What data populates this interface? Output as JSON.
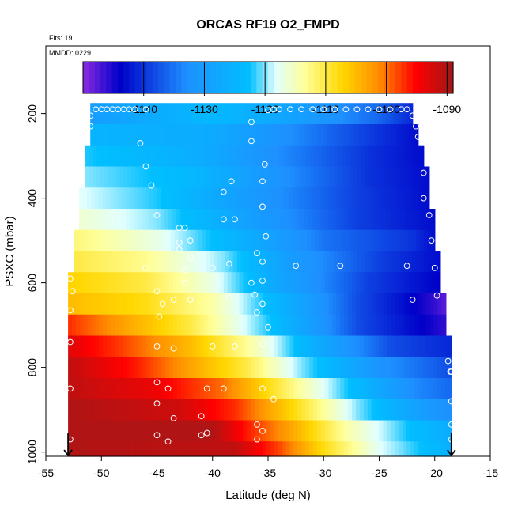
{
  "chart_data": {
    "type": "heatmap",
    "title": "ORCAS RF19 O2_FMPD",
    "flights_label": "Flts: 19",
    "date_label": "MMDD: 0229",
    "xlabel": "Latitude (deg N)",
    "ylabel": "PSXC (mbar)",
    "xlim": [
      -55,
      -15
    ],
    "ylim": [
      1010,
      40
    ],
    "x_ticks": [
      -55,
      -50,
      -45,
      -40,
      -35,
      -30,
      -25,
      -20,
      -15
    ],
    "y_ticks": [
      200,
      400,
      600,
      800,
      1000
    ],
    "colorbar": {
      "range": [
        -1150,
        -1089
      ],
      "ticks": [
        -1140,
        -1130,
        -1120,
        -1110,
        -1100,
        -1090
      ],
      "colors": [
        "#8a2be2",
        "#0000c8",
        "#1e90ff",
        "#00bfff",
        "#e0ffff",
        "#ffff99",
        "#ffd700",
        "#ff8c00",
        "#ff0000",
        "#a01818"
      ],
      "stops": [
        0,
        0.1,
        0.28,
        0.45,
        0.52,
        0.6,
        0.7,
        0.8,
        0.9,
        1
      ]
    },
    "profile_rows": [
      {
        "p_top": 175,
        "p_bot": 225,
        "lat_start": -51,
        "lat_end": -22,
        "nodes": [
          [
            -51,
            -1130
          ],
          [
            -40,
            -1124
          ],
          [
            -35,
            -1127
          ],
          [
            -25,
            -1136
          ],
          [
            -22,
            -1141
          ]
        ]
      },
      {
        "p_top": 225,
        "p_bot": 275,
        "lat_start": -51,
        "lat_end": -21.5,
        "nodes": [
          [
            -51,
            -1125
          ],
          [
            -40,
            -1127
          ],
          [
            -33,
            -1133
          ],
          [
            -25,
            -1140
          ],
          [
            -21.5,
            -1143
          ]
        ]
      },
      {
        "p_top": 275,
        "p_bot": 325,
        "lat_start": -51.5,
        "lat_end": -21,
        "nodes": [
          [
            -51.5,
            -1122
          ],
          [
            -42,
            -1126
          ],
          [
            -34,
            -1133
          ],
          [
            -26,
            -1140
          ],
          [
            -21,
            -1143
          ]
        ]
      },
      {
        "p_top": 325,
        "p_bot": 375,
        "lat_start": -51.5,
        "lat_end": -20.5,
        "nodes": [
          [
            -51.5,
            -1120
          ],
          [
            -42,
            -1124
          ],
          [
            -34,
            -1132
          ],
          [
            -26,
            -1140
          ],
          [
            -20.5,
            -1143
          ]
        ]
      },
      {
        "p_top": 375,
        "p_bot": 425,
        "lat_start": -52,
        "lat_end": -20.5,
        "nodes": [
          [
            -52,
            -1118
          ],
          [
            -45,
            -1122
          ],
          [
            -36,
            -1131
          ],
          [
            -27,
            -1139
          ],
          [
            -20.5,
            -1143
          ]
        ]
      },
      {
        "p_top": 425,
        "p_bot": 475,
        "lat_start": -52,
        "lat_end": -20,
        "nodes": [
          [
            -52,
            -1116
          ],
          [
            -45,
            -1120
          ],
          [
            -36,
            -1130
          ],
          [
            -27,
            -1139
          ],
          [
            -20,
            -1143
          ]
        ]
      },
      {
        "p_top": 475,
        "p_bot": 525,
        "lat_start": -52.5,
        "lat_end": -20,
        "nodes": [
          [
            -52.5,
            -1112
          ],
          [
            -45,
            -1117
          ],
          [
            -38,
            -1125
          ],
          [
            -30,
            -1135
          ],
          [
            -22,
            -1140
          ],
          [
            -20,
            -1143
          ]
        ]
      },
      {
        "p_top": 525,
        "p_bot": 575,
        "lat_start": -52.5,
        "lat_end": -19.5,
        "nodes": [
          [
            -52.5,
            -1110
          ],
          [
            -46,
            -1113
          ],
          [
            -39,
            -1120
          ],
          [
            -33,
            -1130
          ],
          [
            -25,
            -1139
          ],
          [
            -19.5,
            -1143
          ]
        ]
      },
      {
        "p_top": 575,
        "p_bot": 625,
        "lat_start": -53,
        "lat_end": -19.5,
        "nodes": [
          [
            -53,
            -1107
          ],
          [
            -46,
            -1110
          ],
          [
            -40,
            -1117
          ],
          [
            -34,
            -1128
          ],
          [
            -26,
            -1139
          ],
          [
            -19.5,
            -1144
          ]
        ]
      },
      {
        "p_top": 625,
        "p_bot": 675,
        "lat_start": -53,
        "lat_end": -19,
        "nodes": [
          [
            -53,
            -1105
          ],
          [
            -46,
            -1108
          ],
          [
            -40,
            -1114
          ],
          [
            -34,
            -1125
          ],
          [
            -27,
            -1138
          ],
          [
            -20,
            -1146
          ],
          [
            -19,
            -1148
          ]
        ]
      },
      {
        "p_top": 675,
        "p_bot": 725,
        "lat_start": -53,
        "lat_end": -19,
        "nodes": [
          [
            -53,
            -1097
          ],
          [
            -48,
            -1103
          ],
          [
            -42,
            -1110
          ],
          [
            -35,
            -1122
          ],
          [
            -27,
            -1138
          ],
          [
            -19,
            -1146
          ]
        ]
      },
      {
        "p_top": 725,
        "p_bot": 775,
        "lat_start": -53,
        "lat_end": -18.5,
        "nodes": [
          [
            -53,
            -1093
          ],
          [
            -48,
            -1098
          ],
          [
            -42,
            -1105
          ],
          [
            -36,
            -1115
          ],
          [
            -30,
            -1128
          ],
          [
            -24,
            -1138
          ],
          [
            -18.5,
            -1141
          ]
        ]
      },
      {
        "p_top": 775,
        "p_bot": 825,
        "lat_start": -53,
        "lat_end": -18.5,
        "nodes": [
          [
            -53,
            -1091
          ],
          [
            -47,
            -1096
          ],
          [
            -42,
            -1103
          ],
          [
            -37,
            -1110
          ],
          [
            -32,
            -1120
          ],
          [
            -25,
            -1132
          ],
          [
            -18.5,
            -1138
          ]
        ]
      },
      {
        "p_top": 825,
        "p_bot": 875,
        "lat_start": -53,
        "lat_end": -18.5,
        "nodes": [
          [
            -53,
            -1091
          ],
          [
            -45,
            -1094
          ],
          [
            -39,
            -1100
          ],
          [
            -34,
            -1110
          ],
          [
            -28,
            -1122
          ],
          [
            -22,
            -1133
          ],
          [
            -18.5,
            -1136
          ]
        ]
      },
      {
        "p_top": 875,
        "p_bot": 925,
        "lat_start": -53,
        "lat_end": -18.5,
        "nodes": [
          [
            -53,
            -1090
          ],
          [
            -43,
            -1092
          ],
          [
            -38,
            -1097
          ],
          [
            -33,
            -1107
          ],
          [
            -27,
            -1120
          ],
          [
            -21,
            -1130
          ],
          [
            -18.5,
            -1133
          ]
        ]
      },
      {
        "p_top": 925,
        "p_bot": 975,
        "lat_start": -53,
        "lat_end": -18.5,
        "nodes": [
          [
            -53,
            -1090
          ],
          [
            -40,
            -1090
          ],
          [
            -37,
            -1096
          ],
          [
            -33,
            -1103
          ],
          [
            -28,
            -1114
          ],
          [
            -22,
            -1123
          ],
          [
            -18.5,
            -1127
          ]
        ]
      },
      {
        "p_top": 975,
        "p_bot": 1012,
        "lat_start": -53,
        "lat_end": -18.5,
        "nodes": [
          [
            -53,
            -1090
          ],
          [
            -38,
            -1091
          ],
          [
            -34,
            -1098
          ],
          [
            -30,
            -1108
          ],
          [
            -25,
            -1118
          ],
          [
            -20,
            -1124
          ],
          [
            -18.5,
            -1126
          ]
        ]
      }
    ],
    "sample_points": [
      [
        -50.5,
        190
      ],
      [
        -50,
        190
      ],
      [
        -49.5,
        190
      ],
      [
        -49,
        190
      ],
      [
        -48.5,
        190
      ],
      [
        -48,
        190
      ],
      [
        -47.5,
        190
      ],
      [
        -47,
        190
      ],
      [
        -46,
        190
      ],
      [
        -35,
        192
      ],
      [
        -34.5,
        190
      ],
      [
        -34,
        190
      ],
      [
        -33,
        190
      ],
      [
        -32,
        190
      ],
      [
        -31,
        190
      ],
      [
        -30,
        190
      ],
      [
        -29,
        190
      ],
      [
        -28,
        190
      ],
      [
        -27,
        190
      ],
      [
        -26,
        190
      ],
      [
        -25,
        190
      ],
      [
        -24,
        190
      ],
      [
        -23,
        190
      ],
      [
        -22.5,
        190
      ],
      [
        -51,
        205
      ],
      [
        -51,
        230
      ],
      [
        -51.5,
        255
      ],
      [
        -51.7,
        315
      ],
      [
        -22,
        205
      ],
      [
        -21.7,
        230
      ],
      [
        -21.5,
        255
      ],
      [
        -46.5,
        270
      ],
      [
        -46,
        325
      ],
      [
        -45.5,
        370
      ],
      [
        -45,
        440
      ],
      [
        -36.5,
        220
      ],
      [
        -36.5,
        265
      ],
      [
        -35.3,
        320
      ],
      [
        -35.5,
        360
      ],
      [
        -39,
        385
      ],
      [
        -38.3,
        360
      ],
      [
        -38,
        450
      ],
      [
        -35.5,
        420
      ],
      [
        -39,
        450
      ],
      [
        -21,
        340
      ],
      [
        -21,
        400
      ],
      [
        -20.5,
        440
      ],
      [
        -20.3,
        500
      ],
      [
        -43,
        470
      ],
      [
        -42.5,
        470
      ],
      [
        -42,
        500
      ],
      [
        -43,
        505
      ],
      [
        -43,
        520
      ],
      [
        -42,
        540
      ],
      [
        -38.5,
        555
      ],
      [
        -35.5,
        550
      ],
      [
        -36,
        530
      ],
      [
        -35.2,
        490
      ],
      [
        -32.5,
        560
      ],
      [
        -28.5,
        560
      ],
      [
        -22.5,
        560
      ],
      [
        -35.5,
        595
      ],
      [
        -42.5,
        570
      ],
      [
        -42.5,
        600
      ],
      [
        -46,
        565
      ],
      [
        -40,
        565
      ],
      [
        -20,
        565
      ],
      [
        -19.8,
        630
      ],
      [
        -52.7,
        540
      ],
      [
        -52.8,
        590
      ],
      [
        -52.6,
        620
      ],
      [
        -52.8,
        665
      ],
      [
        -45,
        620
      ],
      [
        -44.5,
        650
      ],
      [
        -44.8,
        680
      ],
      [
        -43.5,
        640
      ],
      [
        -42,
        640
      ],
      [
        -38.5,
        635
      ],
      [
        -36.2,
        628
      ],
      [
        -35.5,
        650
      ],
      [
        -36,
        670
      ],
      [
        -36.5,
        600
      ],
      [
        -22,
        640
      ],
      [
        -35,
        705
      ],
      [
        -52.8,
        740
      ],
      [
        -45,
        750
      ],
      [
        -43.5,
        755
      ],
      [
        -40,
        750
      ],
      [
        -38,
        750
      ],
      [
        -35.5,
        745
      ],
      [
        -18.8,
        785
      ],
      [
        -18.6,
        810
      ],
      [
        -18.5,
        810
      ],
      [
        -45,
        835
      ],
      [
        -44,
        850
      ],
      [
        -40.5,
        850
      ],
      [
        -39,
        850
      ],
      [
        -35.5,
        850
      ],
      [
        -34.5,
        875
      ],
      [
        -45,
        885
      ],
      [
        -43.5,
        920
      ],
      [
        -41,
        915
      ],
      [
        -36,
        935
      ],
      [
        -35.5,
        950
      ],
      [
        -40.5,
        955
      ],
      [
        -41,
        960
      ],
      [
        -45,
        960
      ],
      [
        -44,
        975
      ],
      [
        -36,
        970
      ],
      [
        -18.5,
        880
      ],
      [
        -18.5,
        935
      ],
      [
        -18.5,
        970
      ],
      [
        -52.8,
        850
      ],
      [
        -52.8,
        970
      ]
    ],
    "flight_end_markers": [
      -53,
      -18.5
    ]
  }
}
